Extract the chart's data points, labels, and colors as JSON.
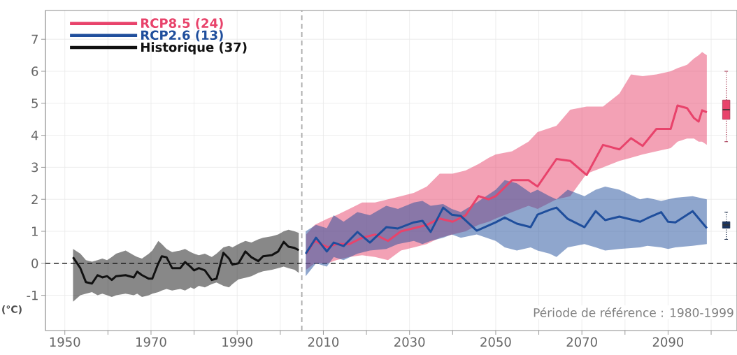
{
  "chart_data": {
    "type": "line",
    "ylabel": "(°C)",
    "xlim": [
      1945.5,
      2106
    ],
    "ylim": [
      -2.1,
      7.9
    ],
    "xticks": [
      1950,
      {
        "value": 1960,
        "label": null
      },
      1970,
      {
        "value": 1980,
        "label": null
      },
      1990,
      {
        "value": 2000,
        "label": null
      },
      2010,
      {
        "value": 2020,
        "label": null
      },
      2030,
      {
        "value": 2040,
        "label": null
      },
      2050,
      {
        "value": 2060,
        "label": null
      },
      2070,
      {
        "value": 2080,
        "label": null
      },
      2090,
      {
        "value": 2100,
        "label": null
      }
    ],
    "yticks": [
      -1,
      0,
      1,
      2,
      3,
      4,
      5,
      6,
      7
    ],
    "grid": true,
    "legend": "top left",
    "ref_lines": [
      {
        "axis": "y",
        "value": 0,
        "color": "#222222",
        "line_style": "dashed"
      },
      {
        "axis": "x",
        "value": 2005,
        "color": "#aaaaaa",
        "line_style": "dashed"
      }
    ],
    "annotations": [
      "Période de référence : 1980-1999"
    ],
    "series": [
      {
        "name": "RCP8.5 (24)",
        "color": "#e8436b",
        "x": [
          2006,
          2008,
          2011,
          2013,
          2016,
          2019,
          2022,
          2025,
          2028,
          2031,
          2034,
          2037,
          2040,
          2043,
          2046,
          2048.4,
          2050,
          2053.8,
          2057.6,
          2059.7,
          2064.1,
          2067.3,
          2071.1,
          2074.9,
          2078.7,
          2081.4,
          2084.1,
          2087.3,
          2090.6,
          2092.2,
          2094.4,
          2096,
          2097.1,
          2097.9,
          2099
        ],
        "values": [
          0.3,
          0.7,
          0.5,
          0.6,
          0.6,
          0.8,
          0.9,
          0.7,
          1.0,
          1.1,
          1.2,
          1.4,
          1.3,
          1.5,
          2.1,
          2.0,
          2.1,
          2.6,
          2.6,
          2.4,
          3.26,
          3.2,
          2.76,
          3.7,
          3.56,
          3.91,
          3.67,
          4.2,
          4.2,
          4.93,
          4.85,
          4.54,
          4.43,
          4.78,
          4.72
        ],
        "upper": [
          0.9,
          1.2,
          1.4,
          1.5,
          1.7,
          1.9,
          1.9,
          2.0,
          2.1,
          2.2,
          2.4,
          2.8,
          2.8,
          2.9,
          3.1,
          3.3,
          3.4,
          3.5,
          3.8,
          4.1,
          4.3,
          4.8,
          4.9,
          4.9,
          5.3,
          5.9,
          5.85,
          5.9,
          6.0,
          6.1,
          6.2,
          6.4,
          6.5,
          6.6,
          6.5
        ],
        "lower": [
          -0.2,
          0.0,
          0.0,
          0.1,
          0.2,
          0.25,
          0.2,
          0.1,
          0.4,
          0.5,
          0.6,
          0.8,
          0.9,
          1.0,
          1.2,
          1.3,
          1.4,
          1.6,
          1.8,
          1.7,
          2.0,
          2.1,
          2.8,
          3.0,
          3.2,
          3.3,
          3.4,
          3.5,
          3.6,
          3.8,
          3.9,
          3.9,
          3.8,
          3.8,
          3.7
        ]
      },
      {
        "name": "RCP2.6 (13)",
        "color": "#1f4e9c",
        "x": [
          2005.9,
          2008.3,
          2010.8,
          2012.4,
          2014.7,
          2017.9,
          2020.8,
          2024.6,
          2027.3,
          2031,
          2033,
          2034.9,
          2037.8,
          2039.8,
          2041.9,
          2045.6,
          2050,
          2052.1,
          2054.9,
          2058.1,
          2059.7,
          2062.5,
          2064.1,
          2066.7,
          2070.6,
          2073.2,
          2075.4,
          2078.7,
          2083.5,
          2085.2,
          2088.4,
          2090,
          2091.7,
          2095.7,
          2099
        ],
        "values": [
          0.3,
          0.8,
          0.37,
          0.65,
          0.54,
          0.98,
          0.65,
          1.13,
          1.09,
          1.28,
          1.33,
          0.98,
          1.74,
          1.52,
          1.48,
          1.02,
          1.28,
          1.43,
          1.24,
          1.13,
          1.52,
          1.67,
          1.74,
          1.39,
          1.13,
          1.63,
          1.35,
          1.46,
          1.3,
          1.41,
          1.6,
          1.3,
          1.28,
          1.63,
          1.1
        ],
        "upper": [
          1.0,
          1.2,
          1.1,
          1.5,
          1.3,
          1.6,
          1.5,
          1.8,
          1.7,
          1.9,
          1.95,
          1.8,
          1.85,
          1.7,
          1.6,
          1.9,
          2.3,
          2.6,
          2.5,
          2.2,
          2.3,
          2.1,
          2.0,
          2.3,
          2.1,
          2.3,
          2.4,
          2.3,
          2.0,
          2.05,
          1.95,
          2.0,
          2.05,
          2.1,
          2.0
        ],
        "lower": [
          -0.4,
          0.0,
          -0.1,
          0.2,
          0.1,
          0.3,
          0.4,
          0.45,
          0.6,
          0.7,
          0.6,
          0.7,
          0.8,
          0.9,
          0.8,
          0.9,
          0.7,
          0.5,
          0.4,
          0.5,
          0.4,
          0.3,
          0.2,
          0.5,
          0.6,
          0.5,
          0.4,
          0.45,
          0.5,
          0.55,
          0.5,
          0.45,
          0.5,
          0.55,
          0.6
        ]
      },
      {
        "name": "Historique (37)",
        "color": "#111111",
        "x": [
          1951.9,
          1953.6,
          1954.9,
          1956.3,
          1957.6,
          1958.7,
          1959.8,
          1960.9,
          1961.9,
          1964.1,
          1966,
          1966.8,
          1967.9,
          1969.5,
          1970.3,
          1971.7,
          1972.5,
          1973.6,
          1974.9,
          1976.8,
          1977.9,
          1979.2,
          1980,
          1981.1,
          1982.5,
          1984.1,
          1985.2,
          1986.8,
          1988.1,
          1988.9,
          1990.3,
          1991.9,
          1993.3,
          1994.9,
          1996,
          1998.1,
          1999.5,
          2000.8,
          2001.9,
          2003.3,
          2004.3
        ],
        "values": [
          0.19,
          -0.15,
          -0.59,
          -0.63,
          -0.37,
          -0.44,
          -0.4,
          -0.52,
          -0.4,
          -0.37,
          -0.44,
          -0.26,
          -0.37,
          -0.48,
          -0.48,
          0,
          0.22,
          0.19,
          -0.15,
          -0.15,
          0.04,
          -0.11,
          -0.22,
          -0.15,
          -0.22,
          -0.52,
          -0.48,
          0.33,
          0.15,
          -0.04,
          0,
          0.37,
          0.19,
          0.07,
          0.22,
          0.26,
          0.37,
          0.67,
          0.52,
          0.48,
          0.41
        ],
        "upper": [
          0.45,
          0.3,
          0.1,
          0.05,
          0.1,
          0.15,
          0.1,
          0.2,
          0.3,
          0.4,
          0.25,
          0.2,
          0.15,
          0.3,
          0.4,
          0.7,
          0.6,
          0.45,
          0.35,
          0.4,
          0.45,
          0.35,
          0.3,
          0.25,
          0.3,
          0.2,
          0.3,
          0.5,
          0.55,
          0.5,
          0.6,
          0.7,
          0.65,
          0.75,
          0.8,
          0.85,
          0.9,
          1.0,
          1.05,
          1.0,
          0.95
        ],
        "lower": [
          -1.2,
          -1.0,
          -0.95,
          -0.9,
          -1.0,
          -0.95,
          -1.0,
          -1.05,
          -1.0,
          -0.95,
          -1.0,
          -0.95,
          -1.05,
          -1.0,
          -0.95,
          -0.9,
          -0.85,
          -0.8,
          -0.85,
          -0.8,
          -0.85,
          -0.75,
          -0.8,
          -0.7,
          -0.75,
          -0.65,
          -0.6,
          -0.7,
          -0.75,
          -0.65,
          -0.5,
          -0.45,
          -0.4,
          -0.3,
          -0.25,
          -0.2,
          -0.15,
          -0.1,
          -0.15,
          -0.2,
          -0.3
        ]
      },
      {
        "type": "box",
        "color": "#e8436b",
        "x": [
          2103.5
        ],
        "boxes": [
          {
            "low": 3.8,
            "q1": 4.5,
            "median": 4.8,
            "q3": 5.1,
            "high": 6.0
          }
        ]
      },
      {
        "type": "box",
        "color": "#1b3560",
        "x": [
          2103.5
        ],
        "boxes": [
          {
            "low": 0.75,
            "q1": 1.1,
            "median": 1.2,
            "q3": 1.3,
            "high": 1.6
          }
        ]
      }
    ]
  }
}
